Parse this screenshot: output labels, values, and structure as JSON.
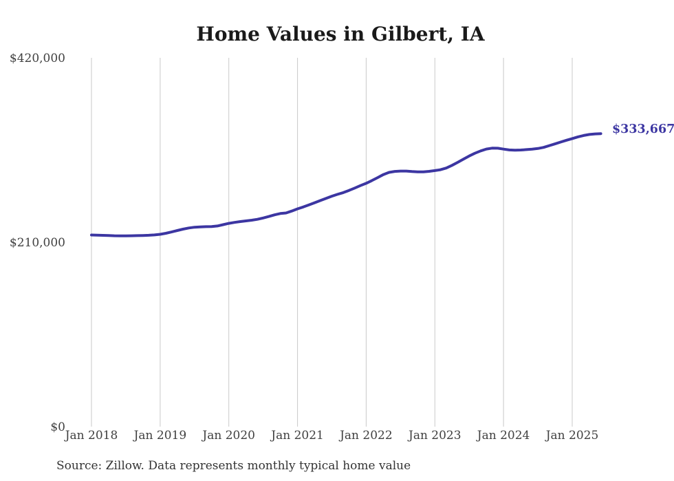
{
  "chart": {
    "title": "Home Values in Gilbert, IA",
    "end_label": "$333,667",
    "source_note": "Source: Zillow. Data represents monthly typical home value"
  },
  "colors": {
    "line": "#3c36a2",
    "grid": "#c9c9c9",
    "axis_text": "#404040",
    "title_text": "#1a1a1a",
    "background": "#ffffff"
  },
  "chart_data": {
    "type": "line",
    "title": "Home Values in Gilbert, IA",
    "xlabel": "",
    "ylabel": "",
    "ylim": [
      0,
      420000
    ],
    "grid": "vertical-only",
    "legend": "none",
    "x_tick_labels": [
      "Jan 2018",
      "Jan 2019",
      "Jan 2020",
      "Jan 2021",
      "Jan 2022",
      "Jan 2023",
      "Jan 2024",
      "Jan 2025"
    ],
    "y_ticks": [
      {
        "value": 0,
        "label": "$0"
      },
      {
        "value": 210000,
        "label": "$210,000"
      },
      {
        "value": 420000,
        "label": "$420,000"
      }
    ],
    "annotation": {
      "text": "$333,667",
      "value": 333667,
      "position": "line-end"
    },
    "series": [
      {
        "name": "Monthly typical home value",
        "frequency": "monthly",
        "start": "Jan 2018",
        "end": "Jun 2025",
        "values": [
          218200,
          218000,
          217800,
          217600,
          217400,
          217300,
          217300,
          217400,
          217500,
          217700,
          217900,
          218300,
          219000,
          220200,
          221700,
          223300,
          224900,
          226200,
          227100,
          227500,
          227700,
          227800,
          228500,
          230000,
          231500,
          232600,
          233500,
          234300,
          235100,
          236100,
          237600,
          239300,
          241200,
          242700,
          243300,
          245500,
          248000,
          250100,
          252500,
          255000,
          257500,
          260000,
          262400,
          264500,
          266500,
          269000,
          271700,
          274500,
          277100,
          280200,
          283600,
          287000,
          289500,
          290600,
          291000,
          291000,
          290500,
          290100,
          290100,
          290700,
          291600,
          292600,
          294500,
          297500,
          301000,
          304600,
          308200,
          311300,
          314000,
          316100,
          317100,
          317000,
          316000,
          315100,
          314800,
          315000,
          315500,
          316000,
          316700,
          318000,
          320000,
          322000,
          324100,
          326100,
          328000,
          330000,
          331500,
          332700,
          333300,
          333667
        ]
      }
    ]
  }
}
